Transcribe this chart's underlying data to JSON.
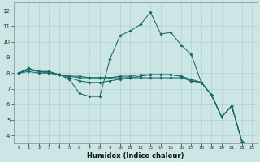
{
  "title": "",
  "xlabel": "Humidex (Indice chaleur)",
  "ylabel": "",
  "bg_color": "#cce5e5",
  "grid_color_major": "#aacccc",
  "grid_color_minor": "#c2d9d9",
  "line_color": "#1a6b6b",
  "xlim": [
    -0.5,
    23.5
  ],
  "ylim": [
    3.5,
    12.5
  ],
  "xticks": [
    0,
    1,
    2,
    3,
    4,
    5,
    6,
    7,
    8,
    9,
    10,
    11,
    12,
    13,
    14,
    15,
    16,
    17,
    18,
    19,
    20,
    21,
    22,
    23
  ],
  "yticks": [
    4,
    5,
    6,
    7,
    8,
    9,
    10,
    11,
    12
  ],
  "lines": [
    {
      "x": [
        0,
        1,
        2,
        3,
        4,
        5,
        6,
        7,
        8,
        9,
        10,
        11,
        12,
        13,
        14,
        15,
        16,
        17,
        18,
        19,
        20,
        21,
        22
      ],
      "y": [
        8.0,
        8.3,
        8.1,
        8.1,
        7.9,
        7.6,
        6.7,
        6.5,
        6.5,
        8.9,
        10.4,
        10.7,
        11.1,
        11.9,
        10.5,
        10.6,
        9.8,
        9.2,
        7.4,
        6.6,
        5.2,
        5.9,
        3.6
      ]
    },
    {
      "x": [
        0,
        1,
        2,
        3,
        4,
        5,
        6,
        7,
        8,
        9,
        10,
        11,
        12,
        13,
        14,
        15,
        16,
        17,
        18,
        19,
        20,
        21,
        22
      ],
      "y": [
        8.0,
        8.3,
        8.1,
        8.1,
        7.9,
        7.7,
        7.5,
        7.4,
        7.4,
        7.5,
        7.6,
        7.7,
        7.8,
        7.9,
        7.9,
        7.9,
        7.8,
        7.6,
        7.4,
        6.6,
        5.2,
        5.9,
        3.6
      ]
    },
    {
      "x": [
        0,
        1,
        2,
        3,
        4,
        5,
        6,
        7,
        8,
        9,
        10,
        11,
        12,
        13,
        14,
        15,
        16,
        17,
        18,
        19,
        20,
        21,
        22
      ],
      "y": [
        8.0,
        8.2,
        8.1,
        8.0,
        7.9,
        7.8,
        7.7,
        7.7,
        7.7,
        7.7,
        7.8,
        7.8,
        7.9,
        7.9,
        7.9,
        7.9,
        7.8,
        7.5,
        7.4,
        6.6,
        5.2,
        5.9,
        3.6
      ]
    },
    {
      "x": [
        0,
        1,
        2,
        3,
        4,
        5,
        6,
        7,
        8,
        9,
        10,
        11,
        12,
        13,
        14,
        15,
        16,
        17,
        18,
        19,
        20,
        21,
        22
      ],
      "y": [
        8.0,
        8.1,
        8.0,
        8.0,
        7.9,
        7.8,
        7.8,
        7.7,
        7.7,
        7.7,
        7.7,
        7.7,
        7.7,
        7.7,
        7.7,
        7.7,
        7.7,
        7.5,
        7.4,
        6.6,
        5.2,
        5.9,
        3.6
      ]
    }
  ]
}
